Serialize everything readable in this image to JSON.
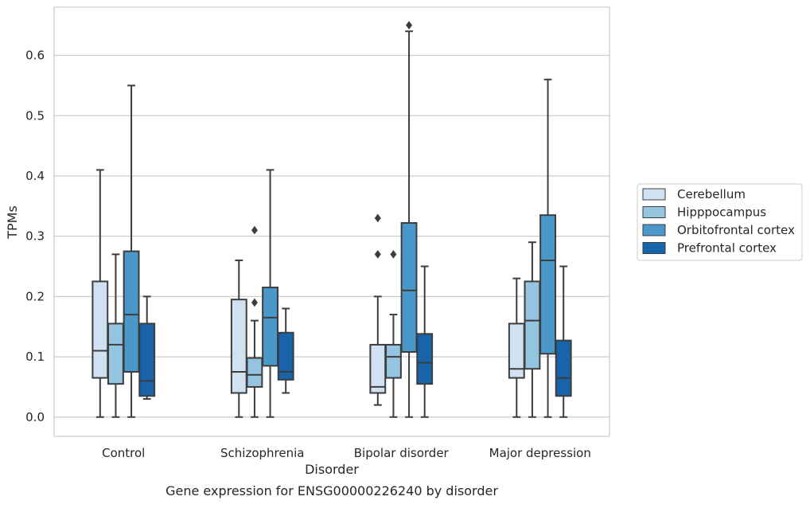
{
  "chart_data": {
    "type": "box",
    "title": "",
    "caption": "Gene expression for ENSG00000226240 by disorder",
    "xlabel": "Disorder",
    "ylabel": "TPMs",
    "ylim": [
      -0.032,
      0.68
    ],
    "yticks": [
      0.0,
      0.1,
      0.2,
      0.3,
      0.4,
      0.5,
      0.6
    ],
    "ytick_labels": [
      "0.0",
      "0.1",
      "0.2",
      "0.3",
      "0.4",
      "0.5",
      "0.6"
    ],
    "grid": "horizontal",
    "legend_position": "right",
    "categories": [
      "Control",
      "Schizophrenia",
      "Bipolar disorder",
      "Major depression"
    ],
    "series": [
      {
        "name": "Cerebellum",
        "color": "#d0e1f2",
        "boxes": [
          {
            "whislo": 0.0,
            "q1": 0.065,
            "med": 0.11,
            "q3": 0.225,
            "whishi": 0.41,
            "fliers": []
          },
          {
            "whislo": 0.0,
            "q1": 0.04,
            "med": 0.075,
            "q3": 0.195,
            "whishi": 0.26,
            "fliers": []
          },
          {
            "whislo": 0.02,
            "q1": 0.04,
            "med": 0.05,
            "q3": 0.12,
            "whishi": 0.2,
            "fliers": [
              0.27,
              0.33
            ]
          },
          {
            "whislo": 0.0,
            "q1": 0.065,
            "med": 0.08,
            "q3": 0.155,
            "whishi": 0.23,
            "fliers": []
          }
        ]
      },
      {
        "name": "Hipppocampus",
        "color": "#94c4df",
        "boxes": [
          {
            "whislo": 0.0,
            "q1": 0.055,
            "med": 0.12,
            "q3": 0.155,
            "whishi": 0.27,
            "fliers": []
          },
          {
            "whislo": 0.0,
            "q1": 0.05,
            "med": 0.07,
            "q3": 0.098,
            "whishi": 0.16,
            "fliers": [
              0.19,
              0.31
            ]
          },
          {
            "whislo": 0.0,
            "q1": 0.065,
            "med": 0.1,
            "q3": 0.12,
            "whishi": 0.17,
            "fliers": [
              0.27
            ]
          },
          {
            "whislo": 0.0,
            "q1": 0.08,
            "med": 0.16,
            "q3": 0.225,
            "whishi": 0.29,
            "fliers": []
          }
        ]
      },
      {
        "name": "Orbitofrontal cortex",
        "color": "#4a98c9",
        "boxes": [
          {
            "whislo": 0.0,
            "q1": 0.075,
            "med": 0.17,
            "q3": 0.275,
            "whishi": 0.55,
            "fliers": []
          },
          {
            "whislo": 0.0,
            "q1": 0.085,
            "med": 0.165,
            "q3": 0.215,
            "whishi": 0.41,
            "fliers": []
          },
          {
            "whislo": 0.0,
            "q1": 0.108,
            "med": 0.21,
            "q3": 0.322,
            "whishi": 0.64,
            "fliers": [
              0.65
            ]
          },
          {
            "whislo": 0.0,
            "q1": 0.105,
            "med": 0.26,
            "q3": 0.335,
            "whishi": 0.56,
            "fliers": []
          }
        ]
      },
      {
        "name": "Prefrontal cortex",
        "color": "#1764ab",
        "boxes": [
          {
            "whislo": 0.03,
            "q1": 0.035,
            "med": 0.06,
            "q3": 0.155,
            "whishi": 0.2,
            "fliers": []
          },
          {
            "whislo": 0.04,
            "q1": 0.062,
            "med": 0.075,
            "q3": 0.14,
            "whishi": 0.18,
            "fliers": []
          },
          {
            "whislo": 0.0,
            "q1": 0.055,
            "med": 0.09,
            "q3": 0.138,
            "whishi": 0.25,
            "fliers": []
          },
          {
            "whislo": 0.0,
            "q1": 0.035,
            "med": 0.065,
            "q3": 0.127,
            "whishi": 0.25,
            "fliers": []
          }
        ]
      }
    ]
  }
}
